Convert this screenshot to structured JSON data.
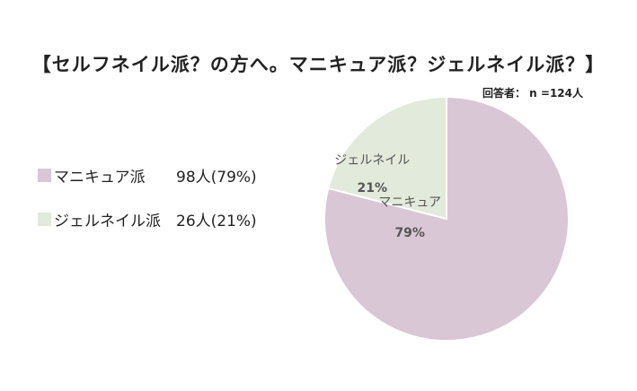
{
  "title": "【セルフネイル派？の方へ。マニキュア派？ジェルネイル派？】",
  "respondents": "回答者： n =124人",
  "chart_data": {
    "type": "pie",
    "slices": [
      {
        "legend": "マニキュア派",
        "label": "マニキュア",
        "count": "98人(79%)",
        "value": 98,
        "percent": "79%",
        "color": "#d9c7d6"
      },
      {
        "legend": "ジェルネイル派",
        "label": "ジェルネイル",
        "count": "26人(21%)",
        "value": 26,
        "percent": "21%",
        "color": "#e2eadb"
      }
    ],
    "total": 124
  }
}
